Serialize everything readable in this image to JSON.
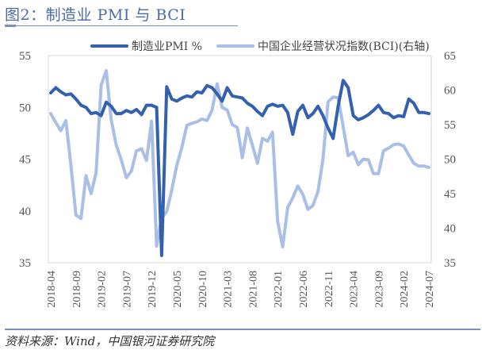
{
  "title": "图2：制造业 PMI 与 BCI",
  "source": "资料来源：Wind，中国银河证券研究院",
  "colors": {
    "pmi": "#3461ad",
    "bci": "#a9bfe6",
    "title": "#4a6aa8",
    "rule": "#7b8fbf"
  },
  "legend": [
    {
      "label": "制造业PMI %",
      "color": "#3461ad"
    },
    {
      "label": "中国企业经营状况指数(BCI)(右轴)",
      "color": "#a9bfe6"
    }
  ],
  "chart_data": {
    "type": "line",
    "title": "制造业 PMI 与 BCI",
    "xlabel": "",
    "ylabel_left": "制造业PMI %",
    "ylabel_right": "BCI",
    "ylim_left": [
      35,
      55
    ],
    "ylim_right": [
      35,
      65
    ],
    "yticks_left": [
      35,
      40,
      45,
      50,
      55
    ],
    "yticks_right": [
      35,
      40,
      45,
      50,
      55,
      60,
      65
    ],
    "grid": false,
    "legend_position": "top",
    "x_tick_labels": [
      "2018-04",
      "2018-09",
      "2019-02",
      "2019-07",
      "2019-12",
      "2020-05",
      "2020-10",
      "2021-03",
      "2021-08",
      "2022-01",
      "2022-06",
      "2022-11",
      "2023-04",
      "2023-09",
      "2024-02",
      "2024-07"
    ],
    "x_start": "2018-04",
    "x_end": "2024-07",
    "series": [
      {
        "name": "制造业PMI %",
        "axis": "left",
        "values": [
          51.4,
          51.9,
          51.5,
          51.2,
          51.3,
          50.8,
          50.2,
          50.0,
          49.4,
          49.5,
          49.2,
          50.5,
          50.1,
          49.4,
          49.4,
          49.7,
          49.5,
          49.8,
          49.3,
          50.2,
          50.2,
          50.0,
          35.7,
          52.0,
          50.8,
          50.6,
          50.9,
          51.1,
          51.0,
          51.5,
          51.4,
          52.1,
          51.9,
          51.3,
          50.6,
          51.9,
          51.1,
          51.0,
          50.9,
          50.4,
          50.1,
          49.6,
          49.2,
          50.1,
          50.3,
          50.1,
          50.2,
          49.5,
          47.4,
          49.6,
          50.2,
          49.0,
          49.4,
          50.1,
          49.2,
          48.0,
          47.0,
          50.1,
          52.6,
          51.9,
          49.2,
          48.8,
          49.0,
          49.3,
          49.7,
          50.2,
          49.5,
          49.4,
          49.0,
          49.2,
          49.1,
          50.8,
          50.4,
          49.5,
          49.5,
          49.4
        ]
      },
      {
        "name": "中国企业经营状况指数(BCI)(右轴)",
        "axis": "right",
        "values": [
          56.6,
          55.3,
          54.1,
          55.6,
          49.2,
          41.9,
          41.4,
          47.6,
          45.0,
          48.0,
          60.7,
          62.8,
          55.7,
          52.0,
          49.9,
          47.3,
          48.3,
          51.2,
          51.5,
          49.8,
          55.5,
          37.4,
          41.5,
          42.4,
          45.5,
          49.1,
          51.7,
          54.9,
          55.2,
          55.4,
          55.8,
          55.6,
          57.1,
          60.9,
          57.5,
          57.1,
          55.0,
          54.6,
          50.2,
          54.5,
          52.0,
          49.4,
          53.0,
          52.6,
          53.9,
          41.0,
          37.3,
          43.0,
          44.4,
          46.1,
          44.9,
          42.7,
          43.3,
          45.3,
          50.0,
          58.3,
          59.0,
          58.9,
          54.7,
          50.5,
          51.0,
          49.2,
          50.0,
          49.9,
          47.9,
          47.9,
          51.2,
          51.6,
          52.1,
          52.2,
          51.9,
          50.6,
          49.4,
          49.0,
          49.0,
          48.8
        ]
      }
    ]
  }
}
